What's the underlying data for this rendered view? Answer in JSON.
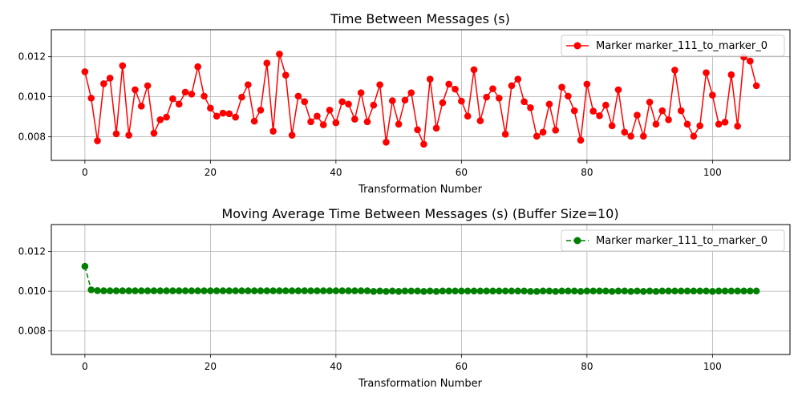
{
  "chart_data": [
    {
      "type": "line",
      "title": "Time Between Messages (s)",
      "xlabel": "Transformation Number",
      "ylabel": "",
      "xlim": [
        -5.35,
        112.35
      ],
      "ylim": [
        0.00682,
        0.01335
      ],
      "xticks": [
        0,
        20,
        40,
        60,
        80,
        100
      ],
      "yticks": [
        0.008,
        0.01,
        0.012
      ],
      "ytick_labels": [
        "0.008",
        "0.010",
        "0.012"
      ],
      "grid": true,
      "legend": "top-right",
      "series": [
        {
          "name": "Marker marker_111_to_marker_0",
          "color": "#ff0000",
          "marker": "circle",
          "linestyle": "solid",
          "values": [
            0.01125,
            0.00993,
            0.0078,
            0.01065,
            0.01093,
            0.00815,
            0.01155,
            0.00808,
            0.01035,
            0.00953,
            0.01055,
            0.00818,
            0.00885,
            0.00898,
            0.0099,
            0.00963,
            0.01023,
            0.01013,
            0.0115,
            0.01003,
            0.00943,
            0.00903,
            0.00918,
            0.00915,
            0.00898,
            0.00998,
            0.0106,
            0.00878,
            0.00933,
            0.01168,
            0.00828,
            0.01213,
            0.01108,
            0.00808,
            0.01003,
            0.00975,
            0.00875,
            0.00903,
            0.0086,
            0.00933,
            0.0087,
            0.00975,
            0.00963,
            0.00888,
            0.0102,
            0.00875,
            0.00958,
            0.0106,
            0.00773,
            0.0098,
            0.00863,
            0.00983,
            0.0102,
            0.00835,
            0.00763,
            0.01088,
            0.00843,
            0.0097,
            0.01063,
            0.01038,
            0.00978,
            0.00903,
            0.01135,
            0.0088,
            0.00998,
            0.0104,
            0.00993,
            0.00813,
            0.01055,
            0.01088,
            0.00975,
            0.00945,
            0.00803,
            0.00823,
            0.00963,
            0.00833,
            0.01048,
            0.01003,
            0.0093,
            0.00783,
            0.01063,
            0.00928,
            0.00905,
            0.00958,
            0.00855,
            0.01035,
            0.00823,
            0.00803,
            0.00908,
            0.00803,
            0.00973,
            0.00863,
            0.0093,
            0.00885,
            0.01133,
            0.0093,
            0.00863,
            0.00803,
            0.00855,
            0.0112,
            0.01008,
            0.00863,
            0.00873,
            0.0111,
            0.00853,
            0.01198,
            0.01178,
            0.01055
          ]
        }
      ]
    },
    {
      "type": "line",
      "title": "Moving Average Time Between Messages (s) (Buffer Size=10)",
      "xlabel": "Transformation Number",
      "ylabel": "",
      "xlim": [
        -5.35,
        112.35
      ],
      "ylim": [
        0.00682,
        0.01335
      ],
      "xticks": [
        0,
        20,
        40,
        60,
        80,
        100
      ],
      "yticks": [
        0.008,
        0.01,
        0.012
      ],
      "ytick_labels": [
        "0.008",
        "0.010",
        "0.012"
      ],
      "grid": true,
      "legend": "top-right",
      "series": [
        {
          "name": "Marker marker_111_to_marker_0",
          "color": "#008000",
          "marker": "circle",
          "linestyle": "dashed",
          "values": [
            0.01125,
            0.01007,
            0.01003,
            0.01002,
            0.01002,
            0.01002,
            0.01002,
            0.01002,
            0.01002,
            0.01002,
            0.01002,
            0.01002,
            0.01002,
            0.01002,
            0.01002,
            0.01002,
            0.01002,
            0.01002,
            0.01002,
            0.01002,
            0.01002,
            0.01002,
            0.01002,
            0.01002,
            0.01002,
            0.01002,
            0.01002,
            0.01002,
            0.01002,
            0.01002,
            0.01002,
            0.01002,
            0.01002,
            0.01002,
            0.01002,
            0.01002,
            0.01002,
            0.01002,
            0.01002,
            0.01002,
            0.01002,
            0.01002,
            0.01002,
            0.01002,
            0.01002,
            0.01002,
            0.00999,
            0.01001,
            0.00999,
            0.01001,
            0.00999,
            0.01001,
            0.01001,
            0.01001,
            0.00999,
            0.01001,
            0.00999,
            0.01001,
            0.01001,
            0.01001,
            0.01001,
            0.01001,
            0.01001,
            0.01001,
            0.01001,
            0.01001,
            0.01001,
            0.01001,
            0.01001,
            0.01001,
            0.01001,
            0.00999,
            0.00999,
            0.01001,
            0.01001,
            0.00999,
            0.01001,
            0.01001,
            0.01001,
            0.00999,
            0.01001,
            0.01001,
            0.01001,
            0.01001,
            0.00999,
            0.01001,
            0.01001,
            0.00999,
            0.01001,
            0.00999,
            0.01001,
            0.00999,
            0.01001,
            0.01001,
            0.01001,
            0.01001,
            0.01001,
            0.01001,
            0.01001,
            0.01001,
            0.00999,
            0.01001,
            0.01001,
            0.01001,
            0.01001,
            0.01001,
            0.01001,
            0.01001
          ]
        }
      ]
    }
  ]
}
